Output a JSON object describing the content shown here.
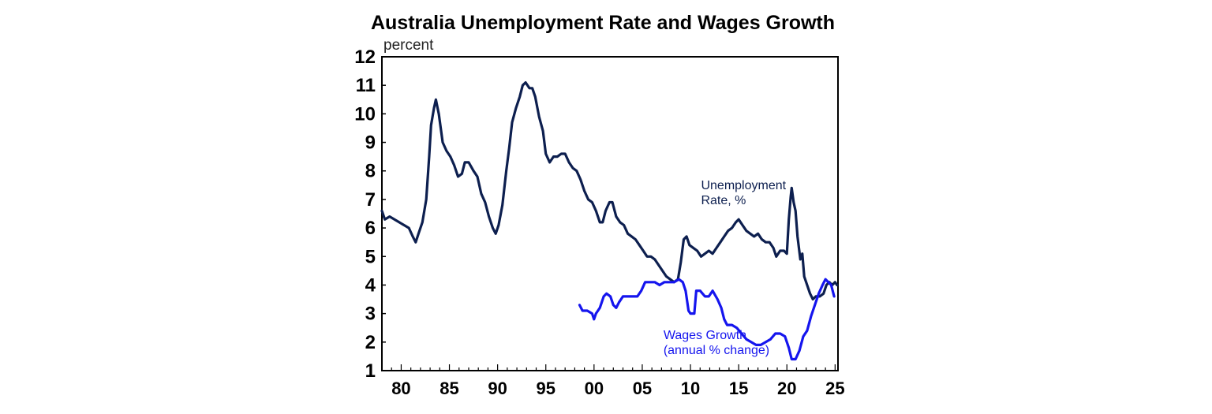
{
  "chart_data": {
    "type": "line",
    "title": "Australia Unemployment Rate and Wages Growth",
    "ylabel": "percent",
    "xlabel": "",
    "xlim": [
      1978.0,
      2025.3
    ],
    "ylim": [
      1,
      12
    ],
    "yticks": [
      1,
      2,
      3,
      4,
      5,
      6,
      7,
      8,
      9,
      10,
      11,
      12
    ],
    "xticks": [
      {
        "value": 1980,
        "label": "80"
      },
      {
        "value": 1985,
        "label": "85"
      },
      {
        "value": 1990,
        "label": "90"
      },
      {
        "value": 1995,
        "label": "95"
      },
      {
        "value": 2000,
        "label": "00"
      },
      {
        "value": 2005,
        "label": "05"
      },
      {
        "value": 2010,
        "label": "10"
      },
      {
        "value": 2015,
        "label": "15"
      },
      {
        "value": 2020,
        "label": "20"
      },
      {
        "value": 2025,
        "label": "25"
      }
    ],
    "grid": false,
    "legend": "none",
    "series": [
      {
        "name": "Unemployment Rate, %",
        "label_lines": [
          "Unemployment",
          "Rate, %"
        ],
        "color": "#0d1f4f",
        "points": [
          [
            1978.0,
            6.6
          ],
          [
            1978.3,
            6.3
          ],
          [
            1978.8,
            6.4
          ],
          [
            1979.3,
            6.3
          ],
          [
            1979.8,
            6.2
          ],
          [
            1980.3,
            6.1
          ],
          [
            1980.8,
            6.0
          ],
          [
            1981.2,
            5.7
          ],
          [
            1981.5,
            5.5
          ],
          [
            1981.8,
            5.8
          ],
          [
            1982.2,
            6.2
          ],
          [
            1982.6,
            7.0
          ],
          [
            1982.9,
            8.5
          ],
          [
            1983.1,
            9.6
          ],
          [
            1983.4,
            10.2
          ],
          [
            1983.6,
            10.5
          ],
          [
            1983.9,
            10.0
          ],
          [
            1984.3,
            9.0
          ],
          [
            1984.7,
            8.7
          ],
          [
            1985.1,
            8.5
          ],
          [
            1985.5,
            8.2
          ],
          [
            1985.9,
            7.8
          ],
          [
            1986.3,
            7.9
          ],
          [
            1986.6,
            8.3
          ],
          [
            1987.0,
            8.3
          ],
          [
            1987.5,
            8.0
          ],
          [
            1987.9,
            7.8
          ],
          [
            1988.3,
            7.2
          ],
          [
            1988.7,
            6.9
          ],
          [
            1989.1,
            6.4
          ],
          [
            1989.5,
            6.0
          ],
          [
            1989.8,
            5.8
          ],
          [
            1990.1,
            6.1
          ],
          [
            1990.5,
            6.8
          ],
          [
            1990.9,
            8.0
          ],
          [
            1991.2,
            8.8
          ],
          [
            1991.5,
            9.7
          ],
          [
            1991.9,
            10.2
          ],
          [
            1992.3,
            10.6
          ],
          [
            1992.6,
            11.0
          ],
          [
            1992.9,
            11.1
          ],
          [
            1993.3,
            10.9
          ],
          [
            1993.6,
            10.9
          ],
          [
            1993.9,
            10.6
          ],
          [
            1994.3,
            9.9
          ],
          [
            1994.7,
            9.4
          ],
          [
            1995.0,
            8.6
          ],
          [
            1995.4,
            8.3
          ],
          [
            1995.8,
            8.5
          ],
          [
            1996.2,
            8.5
          ],
          [
            1996.6,
            8.6
          ],
          [
            1997.0,
            8.6
          ],
          [
            1997.4,
            8.3
          ],
          [
            1997.8,
            8.1
          ],
          [
            1998.2,
            8.0
          ],
          [
            1998.6,
            7.7
          ],
          [
            1999.0,
            7.3
          ],
          [
            1999.4,
            7.0
          ],
          [
            1999.8,
            6.9
          ],
          [
            2000.2,
            6.6
          ],
          [
            2000.6,
            6.2
          ],
          [
            2000.9,
            6.2
          ],
          [
            2001.2,
            6.6
          ],
          [
            2001.6,
            6.9
          ],
          [
            2001.9,
            6.9
          ],
          [
            2002.3,
            6.4
          ],
          [
            2002.7,
            6.2
          ],
          [
            2003.1,
            6.1
          ],
          [
            2003.5,
            5.8
          ],
          [
            2003.9,
            5.7
          ],
          [
            2004.3,
            5.6
          ],
          [
            2004.7,
            5.4
          ],
          [
            2005.1,
            5.2
          ],
          [
            2005.5,
            5.0
          ],
          [
            2005.9,
            5.0
          ],
          [
            2006.3,
            4.9
          ],
          [
            2006.7,
            4.7
          ],
          [
            2007.1,
            4.5
          ],
          [
            2007.5,
            4.3
          ],
          [
            2007.9,
            4.2
          ],
          [
            2008.3,
            4.1
          ],
          [
            2008.7,
            4.2
          ],
          [
            2009.0,
            4.8
          ],
          [
            2009.3,
            5.6
          ],
          [
            2009.6,
            5.7
          ],
          [
            2009.9,
            5.4
          ],
          [
            2010.3,
            5.3
          ],
          [
            2010.7,
            5.2
          ],
          [
            2011.1,
            5.0
          ],
          [
            2011.5,
            5.1
          ],
          [
            2011.9,
            5.2
          ],
          [
            2012.3,
            5.1
          ],
          [
            2012.7,
            5.3
          ],
          [
            2013.1,
            5.5
          ],
          [
            2013.5,
            5.7
          ],
          [
            2013.9,
            5.9
          ],
          [
            2014.3,
            6.0
          ],
          [
            2014.7,
            6.2
          ],
          [
            2015.0,
            6.3
          ],
          [
            2015.4,
            6.1
          ],
          [
            2015.8,
            5.9
          ],
          [
            2016.2,
            5.8
          ],
          [
            2016.6,
            5.7
          ],
          [
            2017.0,
            5.8
          ],
          [
            2017.4,
            5.6
          ],
          [
            2017.8,
            5.5
          ],
          [
            2018.2,
            5.5
          ],
          [
            2018.6,
            5.3
          ],
          [
            2018.9,
            5.0
          ],
          [
            2019.3,
            5.2
          ],
          [
            2019.7,
            5.2
          ],
          [
            2020.0,
            5.1
          ],
          [
            2020.2,
            6.3
          ],
          [
            2020.4,
            7.1
          ],
          [
            2020.5,
            7.4
          ],
          [
            2020.7,
            6.9
          ],
          [
            2020.9,
            6.6
          ],
          [
            2021.1,
            5.7
          ],
          [
            2021.4,
            4.9
          ],
          [
            2021.6,
            5.1
          ],
          [
            2021.8,
            4.3
          ],
          [
            2022.1,
            4.0
          ],
          [
            2022.4,
            3.7
          ],
          [
            2022.7,
            3.5
          ],
          [
            2023.0,
            3.6
          ],
          [
            2023.4,
            3.6
          ],
          [
            2023.8,
            3.7
          ],
          [
            2024.1,
            4.0
          ],
          [
            2024.4,
            4.1
          ],
          [
            2024.7,
            4.0
          ],
          [
            2025.0,
            4.1
          ],
          [
            2025.2,
            4.0
          ]
        ]
      },
      {
        "name": "Wages Growth (annual % change)",
        "label_lines": [
          "Wages Growth",
          "(annual % change)"
        ],
        "color": "#1515ee",
        "points": [
          [
            1998.5,
            3.3
          ],
          [
            1998.8,
            3.1
          ],
          [
            1999.3,
            3.1
          ],
          [
            1999.8,
            3.0
          ],
          [
            2000.0,
            2.8
          ],
          [
            2000.2,
            3.0
          ],
          [
            2000.6,
            3.2
          ],
          [
            2001.0,
            3.6
          ],
          [
            2001.3,
            3.7
          ],
          [
            2001.7,
            3.6
          ],
          [
            2002.0,
            3.3
          ],
          [
            2002.3,
            3.2
          ],
          [
            2002.6,
            3.4
          ],
          [
            2003.0,
            3.6
          ],
          [
            2003.5,
            3.6
          ],
          [
            2004.0,
            3.6
          ],
          [
            2004.5,
            3.6
          ],
          [
            2004.9,
            3.8
          ],
          [
            2005.3,
            4.1
          ],
          [
            2005.8,
            4.1
          ],
          [
            2006.3,
            4.1
          ],
          [
            2006.8,
            4.0
          ],
          [
            2007.3,
            4.1
          ],
          [
            2007.8,
            4.1
          ],
          [
            2008.3,
            4.1
          ],
          [
            2008.8,
            4.2
          ],
          [
            2009.2,
            4.1
          ],
          [
            2009.5,
            3.8
          ],
          [
            2009.8,
            3.1
          ],
          [
            2010.0,
            3.0
          ],
          [
            2010.4,
            3.0
          ],
          [
            2010.6,
            3.8
          ],
          [
            2011.0,
            3.8
          ],
          [
            2011.5,
            3.6
          ],
          [
            2011.9,
            3.6
          ],
          [
            2012.3,
            3.8
          ],
          [
            2012.8,
            3.5
          ],
          [
            2013.2,
            3.2
          ],
          [
            2013.5,
            2.8
          ],
          [
            2013.8,
            2.6
          ],
          [
            2014.3,
            2.6
          ],
          [
            2014.8,
            2.5
          ],
          [
            2015.3,
            2.3
          ],
          [
            2015.8,
            2.1
          ],
          [
            2016.3,
            2.0
          ],
          [
            2016.8,
            1.9
          ],
          [
            2017.3,
            1.9
          ],
          [
            2017.8,
            2.0
          ],
          [
            2018.3,
            2.1
          ],
          [
            2018.8,
            2.3
          ],
          [
            2019.3,
            2.3
          ],
          [
            2019.8,
            2.2
          ],
          [
            2020.2,
            1.8
          ],
          [
            2020.5,
            1.4
          ],
          [
            2020.9,
            1.4
          ],
          [
            2021.3,
            1.7
          ],
          [
            2021.7,
            2.2
          ],
          [
            2022.1,
            2.4
          ],
          [
            2022.5,
            2.9
          ],
          [
            2022.9,
            3.3
          ],
          [
            2023.3,
            3.7
          ],
          [
            2023.7,
            4.0
          ],
          [
            2024.0,
            4.2
          ],
          [
            2024.3,
            4.1
          ],
          [
            2024.6,
            4.0
          ],
          [
            2024.9,
            3.6
          ]
        ]
      }
    ]
  }
}
